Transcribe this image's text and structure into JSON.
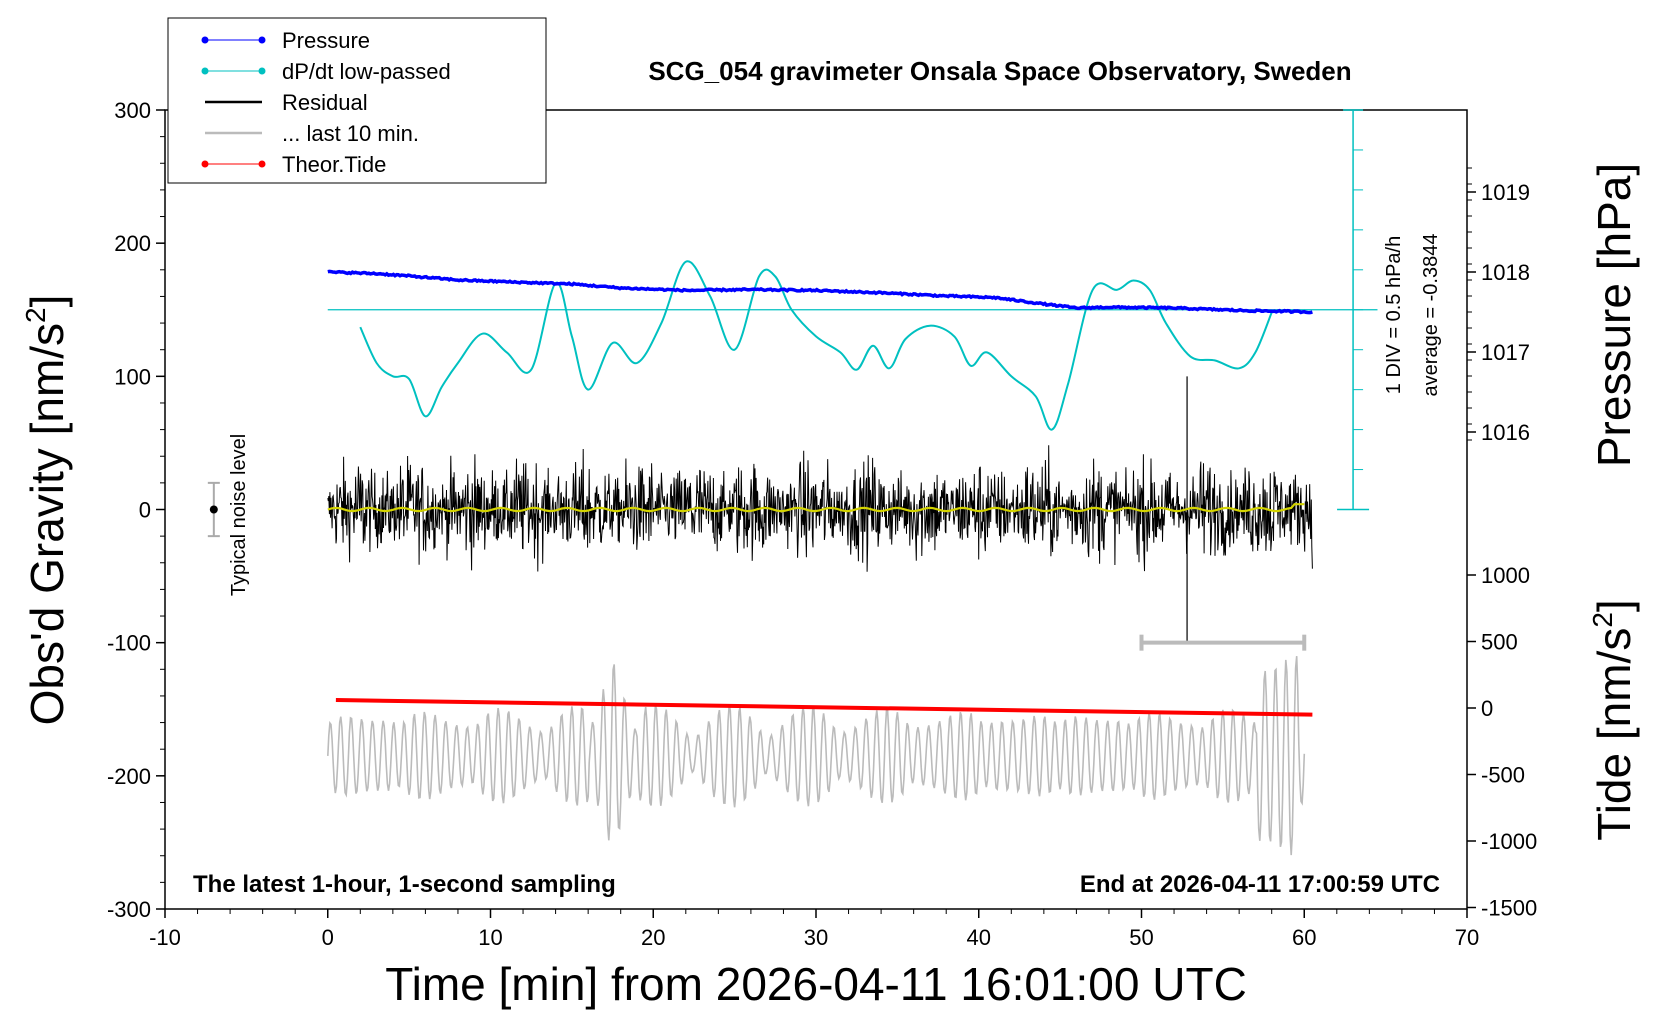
{
  "chart_data": {
    "type": "line",
    "title": "SCG_054 gravimeter Onsala Space Observatory, Sweden",
    "xlabel": "Time [min] from 2026-04-11 16:01:00 UTC",
    "ylabel": "Obs'd Gravity [nm/s",
    "ylabel_sup": "2",
    "ylabel_close": "]",
    "y2label": "Pressure [hPa]",
    "y3label": "Tide [nm/s",
    "y3label_sup": "2",
    "y3label_close": "]",
    "footer_left": "The latest 1-hour, 1-second sampling",
    "footer_right": "End at 2026-04-11 17:00:59 UTC",
    "xlim": [
      -10,
      70
    ],
    "ylim": [
      -300,
      300
    ],
    "x_ticks": [
      "-10",
      "0",
      "10",
      "20",
      "30",
      "40",
      "50",
      "60",
      "70"
    ],
    "y_ticks": [
      "300",
      "200",
      "100",
      "0",
      "-100",
      "-200",
      "-300"
    ],
    "pressure_ticks": [
      "1019",
      "1018",
      "1017",
      "1016"
    ],
    "tide_ticks": [
      "1000",
      "500",
      "0",
      "-500",
      "-1000",
      "-1500"
    ],
    "grid": false,
    "legend_position": "top-left",
    "legend": [
      {
        "name": "Pressure",
        "color": "#0000ff",
        "marker": true
      },
      {
        "name": "dP/dt low-passed",
        "color": "#00c0c0",
        "marker": true
      },
      {
        "name": "Residual",
        "color": "#000000",
        "marker": false
      },
      {
        "name": "... last 10 min.",
        "color": "#bbbbbb",
        "marker": false
      },
      {
        "name": "Theor.Tide",
        "color": "#ff0000",
        "marker": true
      }
    ],
    "dpdt_scale_label": "1 DIV = 0.5 hPa/h",
    "dpdt_average_label": "average = -0.3844",
    "noise_label": "Typical noise level",
    "series": [
      {
        "name": "Pressure",
        "axis": "pressure_hPa",
        "color": "#0000ff",
        "x": [
          0,
          3,
          5,
          8,
          12,
          15,
          18,
          22,
          26,
          30,
          34,
          38,
          41,
          44,
          46,
          48,
          52,
          56,
          60.5
        ],
        "values": [
          1018.0,
          1017.98,
          1017.95,
          1017.9,
          1017.87,
          1017.85,
          1017.8,
          1017.77,
          1017.78,
          1017.77,
          1017.74,
          1017.7,
          1017.68,
          1017.6,
          1017.55,
          1017.56,
          1017.55,
          1017.52,
          1017.5
        ]
      },
      {
        "name": "dP/dt low-passed",
        "axis": "gravity_units",
        "color": "#00c0c0",
        "x": [
          2,
          3,
          4,
          5,
          6,
          7,
          8,
          9.5,
          11,
          12.5,
          14,
          15,
          16,
          17.5,
          19,
          20.5,
          22,
          23.5,
          25,
          26.5,
          27.5,
          28.5,
          30,
          31.5,
          32.5,
          33.5,
          34.5,
          35.5,
          37,
          38.5,
          39.5,
          40.5,
          42,
          43.5,
          44.5,
          45.5,
          47,
          48.5,
          49.5,
          50.5,
          51.5,
          53,
          54.5,
          56,
          57,
          58
        ],
        "values": [
          137,
          110,
          100,
          98,
          70,
          92,
          110,
          132,
          118,
          105,
          170,
          130,
          90,
          125,
          110,
          140,
          186,
          160,
          120,
          175,
          175,
          150,
          130,
          118,
          105,
          123,
          106,
          128,
          138,
          130,
          108,
          118,
          100,
          85,
          60,
          95,
          165,
          165,
          172,
          165,
          140,
          115,
          112,
          106,
          118,
          148
        ]
      },
      {
        "name": "Residual",
        "axis": "gravity_units",
        "color": "#000000",
        "x_range": [
          0,
          60.5
        ],
        "amplitude": 40,
        "extremes": [
          {
            "x": 52.8,
            "value": 100
          },
          {
            "x": 52.8,
            "value": -100
          }
        ],
        "baseline": 0
      },
      {
        "name": "... last 10 min.",
        "axis": "gravity_units",
        "color": "#bbbbbb",
        "x_range": [
          0,
          60
        ],
        "center": -185,
        "amplitude": 30,
        "extremes": [
          {
            "x": 17.5,
            "value": -85
          },
          {
            "x": 17.5,
            "value": -265
          },
          {
            "x": 58,
            "value": -100
          },
          {
            "x": 57.5,
            "value": -260
          }
        ]
      },
      {
        "name": "Theor.Tide",
        "axis": "tide_nm_s2",
        "color": "#ff0000",
        "x": [
          0.5,
          60.5
        ],
        "values": [
          60,
          -50
        ]
      },
      {
        "name": "low-passed residual",
        "axis": "gravity_units",
        "color": "#d4d400",
        "x": [
          0,
          60
        ],
        "values": [
          0,
          0
        ]
      }
    ],
    "last10_range_bar": {
      "x": [
        50,
        60
      ],
      "value": -100
    },
    "noise_bar": {
      "x": -7,
      "value": 0,
      "range": [
        -20,
        20
      ]
    },
    "dpdt_zero_line": 150
  }
}
